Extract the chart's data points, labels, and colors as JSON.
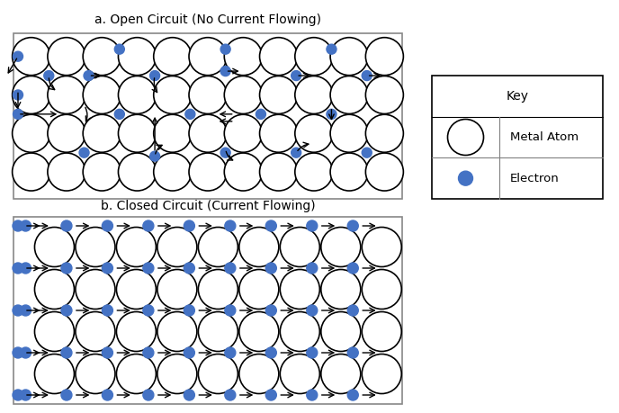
{
  "title_a": "a. Open Circuit (No Current Flowing)",
  "title_b": "b. Closed Circuit (Current Flowing)",
  "key_title": "Key",
  "key_metal": "Metal Atom",
  "key_electron": "Electron",
  "electron_color": "#4472C4",
  "atom_color": "white",
  "atom_edge": "black",
  "background": "white",
  "box_edge": "#888888",
  "fig_w": 6.88,
  "fig_h": 4.59
}
